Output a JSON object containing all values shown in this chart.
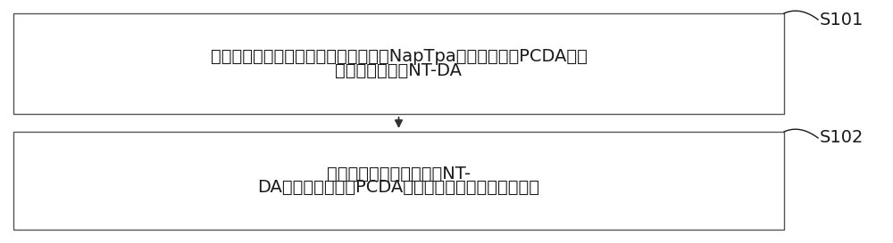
{
  "box1_text_line1": "将具有聚集诱导发光特性的荧光小分子NapTpa与二乙炔单体PCDA共价",
  "box1_text_line2": "结合得到化合物NT-DA",
  "box2_text_line1": "通过薄膜水化法将化合物NT-",
  "box2_text_line2": "DA与两亲性聚合物PCDA制备超分子聚合荧光纳米材料",
  "label1": "S101",
  "label2": "S102",
  "box_facecolor": "#ffffff",
  "box_edgecolor": "#555555",
  "text_color": "#1a1a1a",
  "label_color": "#1a1a1a",
  "arrow_color": "#333333",
  "background_color": "#ffffff",
  "font_size": 14,
  "label_font_size": 14
}
